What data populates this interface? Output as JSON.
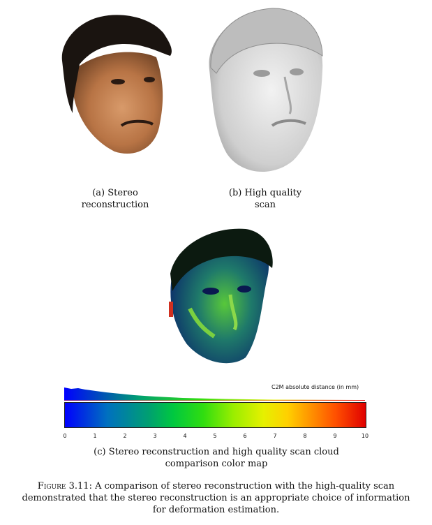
{
  "subfigures": [
    {
      "label": "(a) Stereo",
      "label2": "reconstruction",
      "image": "stereo-reconstruction-face"
    },
    {
      "label": "(b) High quality",
      "label2": "scan",
      "image": "high-quality-scan-face"
    }
  ],
  "colormap": {
    "image": "c2m-distance-colormap-face",
    "histogram_title": "C2M absolute distance (in mm)",
    "ticks": [
      "0",
      "1",
      "2",
      "3",
      "4",
      "5",
      "6",
      "7",
      "8",
      "9",
      "10"
    ],
    "caption_line1": "(c) Stereo reconstruction and high quality scan cloud",
    "caption_line2": "comparison color map"
  },
  "figure": {
    "label": "Figure 3.11:",
    "caption_line1": "A comparison of stereo reconstruction with the high-quality scan",
    "caption_line2": "demonstrated that the stereo reconstruction is an appropriate choice of information",
    "caption_line3": "for deformation estimation."
  },
  "colors": {
    "colormap_low": "#0000ff",
    "colormap_mid": "#9aee00",
    "colormap_high": "#e00000"
  }
}
